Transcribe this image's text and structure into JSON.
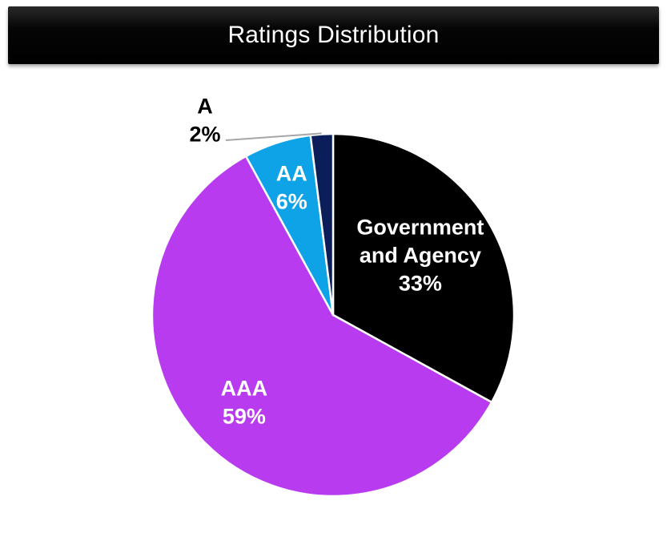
{
  "chart_data": {
    "type": "pie",
    "title": "Ratings Distribution",
    "categories": [
      "Government and Agency",
      "AAA",
      "AA",
      "A"
    ],
    "values": [
      33,
      59,
      6,
      2
    ],
    "colors": [
      "#000000",
      "#b93bf0",
      "#0ea3e6",
      "#0c1e5a"
    ],
    "labels": [
      {
        "name_lines": [
          "Government",
          "and Agency"
        ],
        "value": "33%",
        "color": "#ffffff"
      },
      {
        "name_lines": [
          "AAA"
        ],
        "value": "59%",
        "color": "#ffffff"
      },
      {
        "name_lines": [
          "AA"
        ],
        "value": "6%",
        "color": "#ffffff"
      },
      {
        "name_lines": [
          "A"
        ],
        "value": "2%",
        "color": "#000000"
      }
    ],
    "legend": "none"
  }
}
